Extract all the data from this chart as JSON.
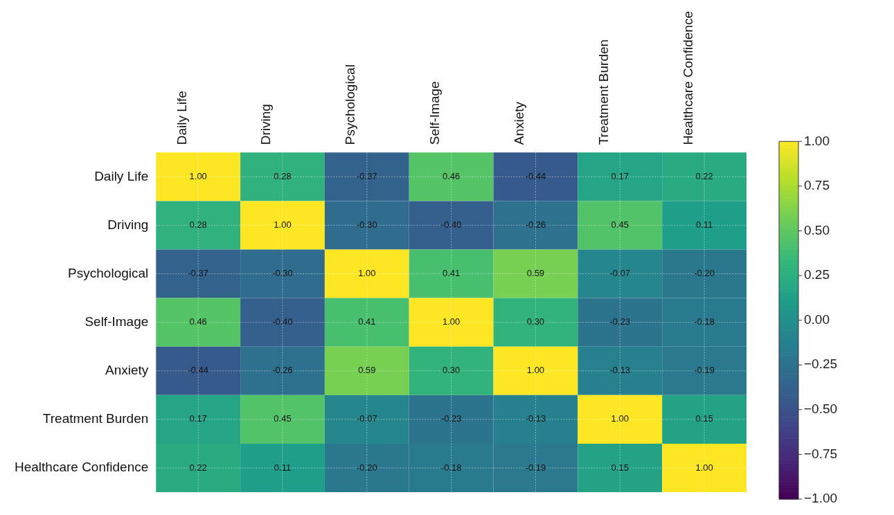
{
  "chart_data": {
    "type": "heatmap",
    "categories": [
      "Daily Life",
      "Driving",
      "Psychological",
      "Self-Image",
      "Anxiety",
      "Treatment Burden",
      "Healthcare Confidence"
    ],
    "y_categories": [
      "Daily Life",
      "Driving",
      "Psychological",
      "Self-Image",
      "Anxiety",
      "Treatment Burden",
      "Healthcare Confidence"
    ],
    "cells": [
      [
        1.0,
        0.28,
        -0.37,
        0.46,
        -0.44,
        0.17,
        0.22
      ],
      [
        0.28,
        1.0,
        -0.3,
        -0.4,
        -0.26,
        0.45,
        0.11
      ],
      [
        -0.37,
        -0.3,
        1.0,
        0.41,
        0.59,
        -0.07,
        -0.2
      ],
      [
        0.46,
        -0.4,
        0.41,
        1.0,
        0.3,
        -0.23,
        -0.18
      ],
      [
        -0.44,
        -0.26,
        0.59,
        0.3,
        1.0,
        -0.13,
        -0.19
      ],
      [
        0.17,
        0.45,
        -0.07,
        -0.23,
        -0.13,
        1.0,
        0.15
      ],
      [
        0.22,
        0.11,
        -0.2,
        -0.18,
        -0.19,
        0.15,
        1.0
      ]
    ],
    "cell_labels": [
      [
        "1.00",
        "0.28",
        "-0.37",
        "0.46",
        "-0.44",
        "0.17",
        "0.22"
      ],
      [
        "0.28",
        "1.00",
        "-0.30",
        "-0.40",
        "-0.26",
        "0.45",
        "0.11"
      ],
      [
        "-0.37",
        "-0.30",
        "1.00",
        "0.41",
        "0.59",
        "-0.07",
        "-0.20"
      ],
      [
        "0.46",
        "-0.40",
        "0.41",
        "1.00",
        "0.30",
        "-0.23",
        "-0.18"
      ],
      [
        "-0.44",
        "-0.26",
        "0.59",
        "0.30",
        "1.00",
        "-0.13",
        "-0.19"
      ],
      [
        "0.17",
        "0.45",
        "-0.07",
        "-0.23",
        "-0.13",
        "1.00",
        "0.15"
      ],
      [
        "0.22",
        "0.11",
        "-0.20",
        "-0.18",
        "-0.19",
        "0.15",
        "1.00"
      ]
    ],
    "data_labels": true,
    "grid": true,
    "clim": [
      -1,
      1
    ],
    "cticks": [
      {
        "value": -1,
        "label": "−1.00"
      },
      {
        "value": -0.75,
        "label": "−0.75"
      },
      {
        "value": -0.5,
        "label": "−0.50"
      },
      {
        "value": -0.25,
        "label": "−0.25"
      },
      {
        "value": 0,
        "label": "0.00"
      },
      {
        "value": 0.25,
        "label": "0.25"
      },
      {
        "value": 0.5,
        "label": "0.50"
      },
      {
        "value": 0.75,
        "label": "0.75"
      },
      {
        "value": 1,
        "label": "1.00"
      }
    ]
  }
}
